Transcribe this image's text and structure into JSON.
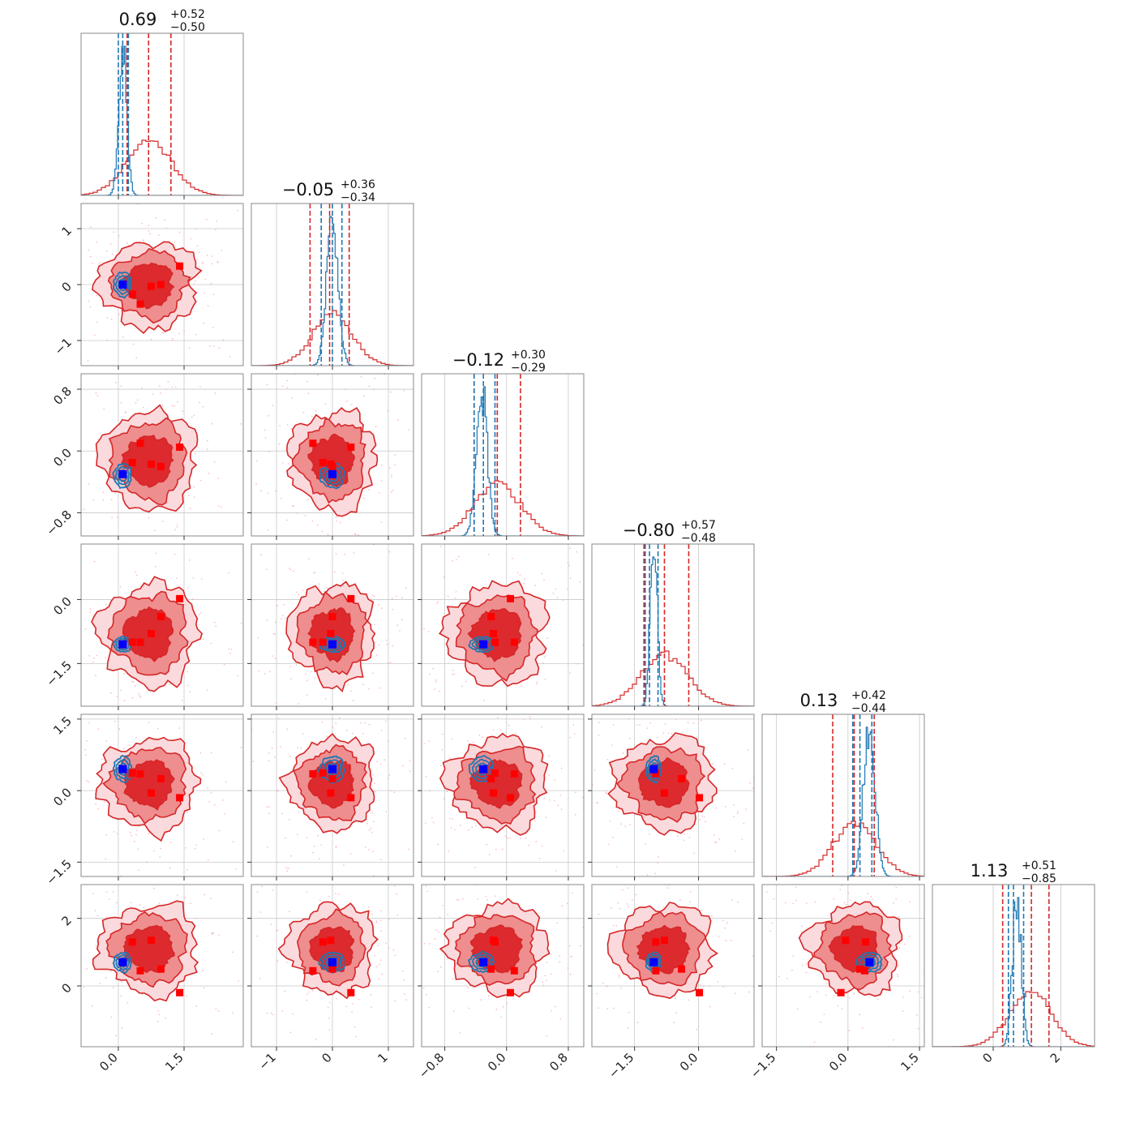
{
  "chart_data": {
    "type": "corner",
    "parameters": 6,
    "colors": {
      "prior": "#d62728",
      "posterior": "#1f77b4",
      "contour_fill": [
        "#fadadd",
        "#ee8e8f",
        "#dc2a2e"
      ],
      "truth_marker": "#0000ff",
      "sample_marker": "#ff0000",
      "scatter": "#f4a6b6"
    },
    "titles": [
      {
        "median": "0.69",
        "plus": "+0.52",
        "minus": "−0.50"
      },
      {
        "median": "−0.05",
        "plus": "+0.36",
        "minus": "−0.34"
      },
      {
        "median": "−0.12",
        "plus": "+0.30",
        "minus": "−0.29"
      },
      {
        "median": "−0.80",
        "plus": "+0.57",
        "minus": "−0.48"
      },
      {
        "median": "0.13",
        "plus": "+0.42",
        "minus": "−0.44"
      },
      {
        "median": "1.13",
        "plus": "+0.51",
        "minus": "−0.85"
      }
    ],
    "ranges": [
      [
        -0.85,
        2.85
      ],
      [
        -1.45,
        1.45
      ],
      [
        -1.1,
        1.0
      ],
      [
        -2.5,
        1.3
      ],
      [
        -1.8,
        1.6
      ],
      [
        -1.8,
        3.0
      ]
    ],
    "ticks": [
      [
        {
          "v": 0.0,
          "label": "0.0"
        },
        {
          "v": 1.5,
          "label": "1.5"
        }
      ],
      [
        {
          "v": -1,
          "label": "−1"
        },
        {
          "v": 0,
          "label": "0"
        },
        {
          "v": 1,
          "label": "1"
        }
      ],
      [
        {
          "v": -0.8,
          "label": "−0.8"
        },
        {
          "v": 0.0,
          "label": "0.0"
        },
        {
          "v": 0.8,
          "label": "0.8"
        }
      ],
      [
        {
          "v": -1.5,
          "label": "−1.5"
        },
        {
          "v": 0.0,
          "label": "0.0"
        }
      ],
      [
        {
          "v": -1.5,
          "label": "−1.5"
        },
        {
          "v": 0.0,
          "label": "0.0"
        },
        {
          "v": 1.5,
          "label": "1.5"
        }
      ],
      [
        {
          "v": 0,
          "label": "0"
        },
        {
          "v": 2,
          "label": "2"
        }
      ]
    ],
    "posterior": {
      "mean": [
        0.1,
        0.0,
        -0.32,
        -1.05,
        0.45,
        0.7
      ],
      "sd": [
        0.09,
        0.1,
        0.07,
        0.08,
        0.12,
        0.13
      ],
      "quantiles": [
        [
          0.0,
          0.1,
          0.23
        ],
        [
          -0.2,
          0.0,
          0.17
        ],
        [
          -0.42,
          -0.3,
          -0.15
        ],
        [
          -1.25,
          -1.15,
          -0.95
        ],
        [
          0.1,
          0.25,
          0.5
        ],
        [
          0.45,
          0.6,
          0.9
        ]
      ]
    },
    "prior": {
      "mean": [
        0.7,
        0.0,
        -0.12,
        -0.8,
        0.15,
        1.1
      ],
      "sd": [
        0.52,
        0.36,
        0.3,
        0.55,
        0.45,
        0.62
      ],
      "quantiles": [
        [
          0.2,
          0.69,
          1.2
        ],
        [
          -0.4,
          -0.05,
          0.3
        ],
        [
          -0.42,
          -0.12,
          0.18
        ],
        [
          -1.28,
          -0.8,
          -0.23
        ],
        [
          -0.32,
          0.13,
          0.55
        ],
        [
          0.28,
          1.13,
          1.65
        ]
      ]
    },
    "truth": [
      0.1,
      0.0,
      -0.3,
      -1.05,
      0.45,
      0.7
    ],
    "red_markers": [
      [
        1.4,
        0.33,
        0.05,
        0.02,
        -0.15,
        -0.2
      ],
      [
        0.97,
        0.0,
        -0.2,
        -0.4,
        0.25,
        0.5
      ],
      [
        0.75,
        -0.03,
        -0.17,
        -0.8,
        -0.05,
        1.35
      ],
      [
        0.32,
        -0.17,
        -0.15,
        -1.0,
        0.37,
        1.3
      ],
      [
        0.5,
        -0.35,
        0.1,
        -1.0,
        0.35,
        0.45
      ]
    ]
  }
}
